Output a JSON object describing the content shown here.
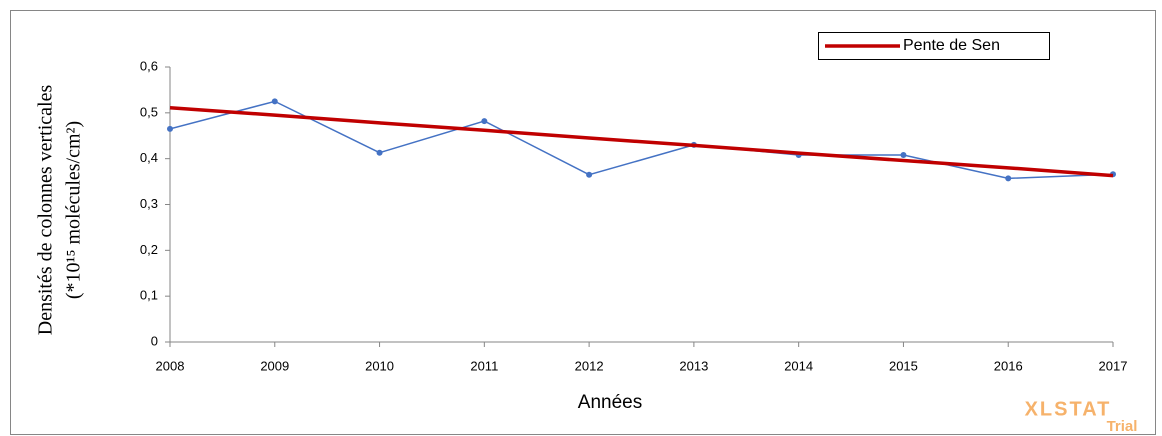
{
  "chart_data": {
    "type": "line",
    "x_label": "Années",
    "y_label": [
      "Densités de colonnes verticales",
      "(*10¹⁵ molécules/cm²)"
    ],
    "x": [
      2008,
      2009,
      2010,
      2011,
      2012,
      2013,
      2014,
      2015,
      2016,
      2017
    ],
    "series": [
      {
        "color": "#4472c4",
        "markers": true,
        "values": [
          0.465,
          0.525,
          0.413,
          0.482,
          0.365,
          0.43,
          0.408,
          0.408,
          0.357,
          0.366
        ]
      },
      {
        "name": "Pente de Sen",
        "color": "#c00000",
        "markers": false,
        "values": [
          0.511,
          0.495,
          0.478,
          0.462,
          0.445,
          0.429,
          0.412,
          0.396,
          0.38,
          0.363
        ]
      }
    ],
    "xlim": [
      2008,
      2017
    ],
    "xticks": [
      2008,
      2009,
      2010,
      2011,
      2012,
      2013,
      2014,
      2015,
      2016,
      2017
    ],
    "ylim": [
      0,
      0.6
    ],
    "yticks": [
      0,
      {
        "value": 0.1,
        "label": "0,1"
      },
      {
        "value": 0.2,
        "label": "0,2"
      },
      {
        "value": 0.3,
        "label": "0,3"
      },
      {
        "value": 0.4,
        "label": "0,4"
      },
      {
        "value": 0.5,
        "label": "0,5"
      },
      {
        "value": 0.6,
        "label": "0,6"
      }
    ],
    "grid": false,
    "legend": "top-right",
    "watermark": [
      "XLSTAT",
      "Trial"
    ]
  }
}
